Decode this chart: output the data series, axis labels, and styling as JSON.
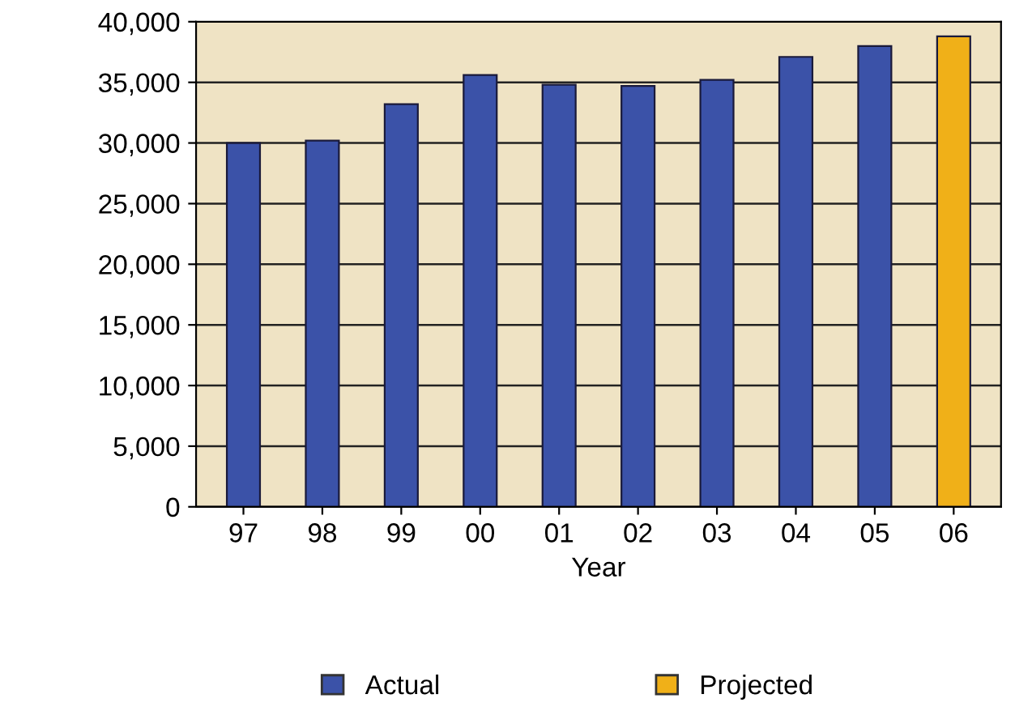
{
  "chart_data": {
    "type": "bar",
    "xlabel": "Year",
    "categories": [
      "97",
      "98",
      "99",
      "00",
      "01",
      "02",
      "03",
      "04",
      "05",
      "06"
    ],
    "series": [
      {
        "name": "Actual",
        "color": "#3b52a8",
        "values": [
          30000,
          30200,
          33200,
          35600,
          34800,
          34700,
          35200,
          37100,
          38000,
          null
        ]
      },
      {
        "name": "Projected",
        "color": "#f0b018",
        "values": [
          null,
          null,
          null,
          null,
          null,
          null,
          null,
          null,
          null,
          38800
        ]
      }
    ],
    "ylim": [
      0,
      40000
    ],
    "yticks": [
      {
        "value": 0,
        "label": "0"
      },
      {
        "value": 5000,
        "label": "5,000"
      },
      {
        "value": 10000,
        "label": "10,000"
      },
      {
        "value": 15000,
        "label": "15,000"
      },
      {
        "value": 20000,
        "label": "20,000"
      },
      {
        "value": 25000,
        "label": "25,000"
      },
      {
        "value": 30000,
        "label": "30,000"
      },
      {
        "value": 35000,
        "label": "35,000"
      },
      {
        "value": 40000,
        "label": "40,000"
      }
    ],
    "grid": "y",
    "legend": "bottom"
  }
}
